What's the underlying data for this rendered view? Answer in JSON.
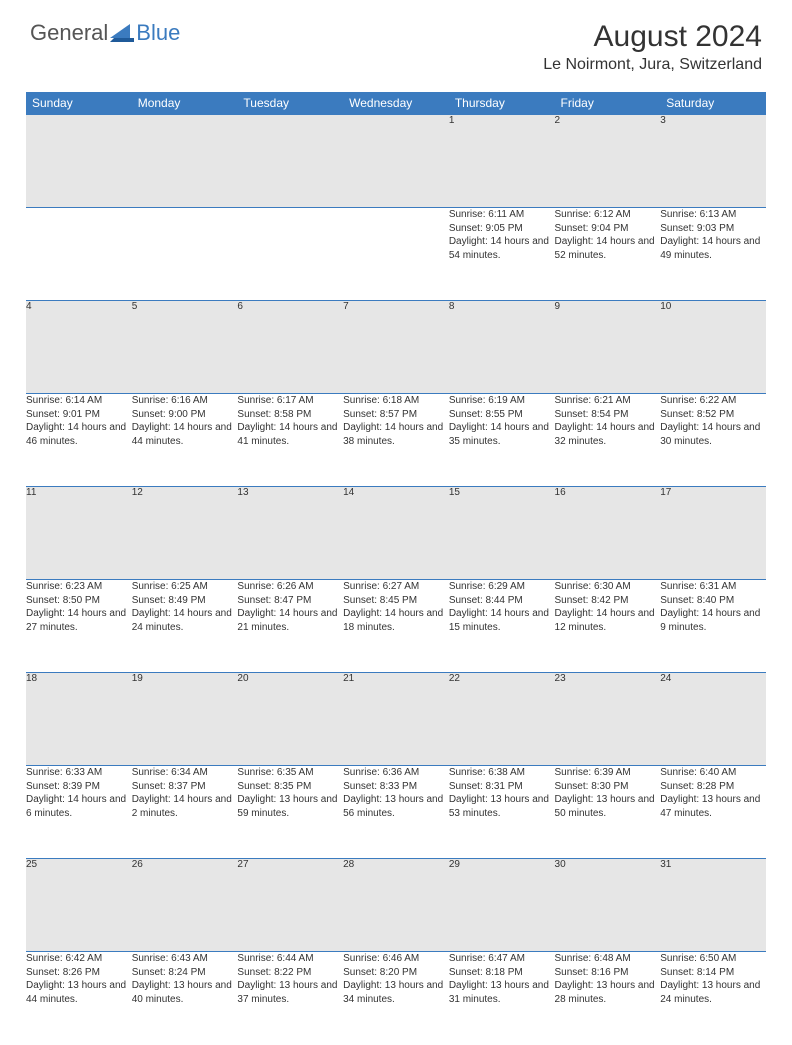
{
  "logo": {
    "part1": "General",
    "part2": "Blue"
  },
  "title": "August 2024",
  "location": "Le Noirmont, Jura, Switzerland",
  "colors": {
    "header_bg": "#3b7bbf",
    "header_text": "#ffffff",
    "daynum_bg": "#e6e6e6",
    "border": "#3b7bbf",
    "text": "#333333",
    "logo_gray": "#555555",
    "logo_blue": "#3b7bbf"
  },
  "dayHeaders": [
    "Sunday",
    "Monday",
    "Tuesday",
    "Wednesday",
    "Thursday",
    "Friday",
    "Saturday"
  ],
  "weeks": [
    [
      {
        "n": "",
        "sr": "",
        "ss": "",
        "dl": ""
      },
      {
        "n": "",
        "sr": "",
        "ss": "",
        "dl": ""
      },
      {
        "n": "",
        "sr": "",
        "ss": "",
        "dl": ""
      },
      {
        "n": "",
        "sr": "",
        "ss": "",
        "dl": ""
      },
      {
        "n": "1",
        "sr": "Sunrise: 6:11 AM",
        "ss": "Sunset: 9:05 PM",
        "dl": "Daylight: 14 hours and 54 minutes."
      },
      {
        "n": "2",
        "sr": "Sunrise: 6:12 AM",
        "ss": "Sunset: 9:04 PM",
        "dl": "Daylight: 14 hours and 52 minutes."
      },
      {
        "n": "3",
        "sr": "Sunrise: 6:13 AM",
        "ss": "Sunset: 9:03 PM",
        "dl": "Daylight: 14 hours and 49 minutes."
      }
    ],
    [
      {
        "n": "4",
        "sr": "Sunrise: 6:14 AM",
        "ss": "Sunset: 9:01 PM",
        "dl": "Daylight: 14 hours and 46 minutes."
      },
      {
        "n": "5",
        "sr": "Sunrise: 6:16 AM",
        "ss": "Sunset: 9:00 PM",
        "dl": "Daylight: 14 hours and 44 minutes."
      },
      {
        "n": "6",
        "sr": "Sunrise: 6:17 AM",
        "ss": "Sunset: 8:58 PM",
        "dl": "Daylight: 14 hours and 41 minutes."
      },
      {
        "n": "7",
        "sr": "Sunrise: 6:18 AM",
        "ss": "Sunset: 8:57 PM",
        "dl": "Daylight: 14 hours and 38 minutes."
      },
      {
        "n": "8",
        "sr": "Sunrise: 6:19 AM",
        "ss": "Sunset: 8:55 PM",
        "dl": "Daylight: 14 hours and 35 minutes."
      },
      {
        "n": "9",
        "sr": "Sunrise: 6:21 AM",
        "ss": "Sunset: 8:54 PM",
        "dl": "Daylight: 14 hours and 32 minutes."
      },
      {
        "n": "10",
        "sr": "Sunrise: 6:22 AM",
        "ss": "Sunset: 8:52 PM",
        "dl": "Daylight: 14 hours and 30 minutes."
      }
    ],
    [
      {
        "n": "11",
        "sr": "Sunrise: 6:23 AM",
        "ss": "Sunset: 8:50 PM",
        "dl": "Daylight: 14 hours and 27 minutes."
      },
      {
        "n": "12",
        "sr": "Sunrise: 6:25 AM",
        "ss": "Sunset: 8:49 PM",
        "dl": "Daylight: 14 hours and 24 minutes."
      },
      {
        "n": "13",
        "sr": "Sunrise: 6:26 AM",
        "ss": "Sunset: 8:47 PM",
        "dl": "Daylight: 14 hours and 21 minutes."
      },
      {
        "n": "14",
        "sr": "Sunrise: 6:27 AM",
        "ss": "Sunset: 8:45 PM",
        "dl": "Daylight: 14 hours and 18 minutes."
      },
      {
        "n": "15",
        "sr": "Sunrise: 6:29 AM",
        "ss": "Sunset: 8:44 PM",
        "dl": "Daylight: 14 hours and 15 minutes."
      },
      {
        "n": "16",
        "sr": "Sunrise: 6:30 AM",
        "ss": "Sunset: 8:42 PM",
        "dl": "Daylight: 14 hours and 12 minutes."
      },
      {
        "n": "17",
        "sr": "Sunrise: 6:31 AM",
        "ss": "Sunset: 8:40 PM",
        "dl": "Daylight: 14 hours and 9 minutes."
      }
    ],
    [
      {
        "n": "18",
        "sr": "Sunrise: 6:33 AM",
        "ss": "Sunset: 8:39 PM",
        "dl": "Daylight: 14 hours and 6 minutes."
      },
      {
        "n": "19",
        "sr": "Sunrise: 6:34 AM",
        "ss": "Sunset: 8:37 PM",
        "dl": "Daylight: 14 hours and 2 minutes."
      },
      {
        "n": "20",
        "sr": "Sunrise: 6:35 AM",
        "ss": "Sunset: 8:35 PM",
        "dl": "Daylight: 13 hours and 59 minutes."
      },
      {
        "n": "21",
        "sr": "Sunrise: 6:36 AM",
        "ss": "Sunset: 8:33 PM",
        "dl": "Daylight: 13 hours and 56 minutes."
      },
      {
        "n": "22",
        "sr": "Sunrise: 6:38 AM",
        "ss": "Sunset: 8:31 PM",
        "dl": "Daylight: 13 hours and 53 minutes."
      },
      {
        "n": "23",
        "sr": "Sunrise: 6:39 AM",
        "ss": "Sunset: 8:30 PM",
        "dl": "Daylight: 13 hours and 50 minutes."
      },
      {
        "n": "24",
        "sr": "Sunrise: 6:40 AM",
        "ss": "Sunset: 8:28 PM",
        "dl": "Daylight: 13 hours and 47 minutes."
      }
    ],
    [
      {
        "n": "25",
        "sr": "Sunrise: 6:42 AM",
        "ss": "Sunset: 8:26 PM",
        "dl": "Daylight: 13 hours and 44 minutes."
      },
      {
        "n": "26",
        "sr": "Sunrise: 6:43 AM",
        "ss": "Sunset: 8:24 PM",
        "dl": "Daylight: 13 hours and 40 minutes."
      },
      {
        "n": "27",
        "sr": "Sunrise: 6:44 AM",
        "ss": "Sunset: 8:22 PM",
        "dl": "Daylight: 13 hours and 37 minutes."
      },
      {
        "n": "28",
        "sr": "Sunrise: 6:46 AM",
        "ss": "Sunset: 8:20 PM",
        "dl": "Daylight: 13 hours and 34 minutes."
      },
      {
        "n": "29",
        "sr": "Sunrise: 6:47 AM",
        "ss": "Sunset: 8:18 PM",
        "dl": "Daylight: 13 hours and 31 minutes."
      },
      {
        "n": "30",
        "sr": "Sunrise: 6:48 AM",
        "ss": "Sunset: 8:16 PM",
        "dl": "Daylight: 13 hours and 28 minutes."
      },
      {
        "n": "31",
        "sr": "Sunrise: 6:50 AM",
        "ss": "Sunset: 8:14 PM",
        "dl": "Daylight: 13 hours and 24 minutes."
      }
    ]
  ]
}
